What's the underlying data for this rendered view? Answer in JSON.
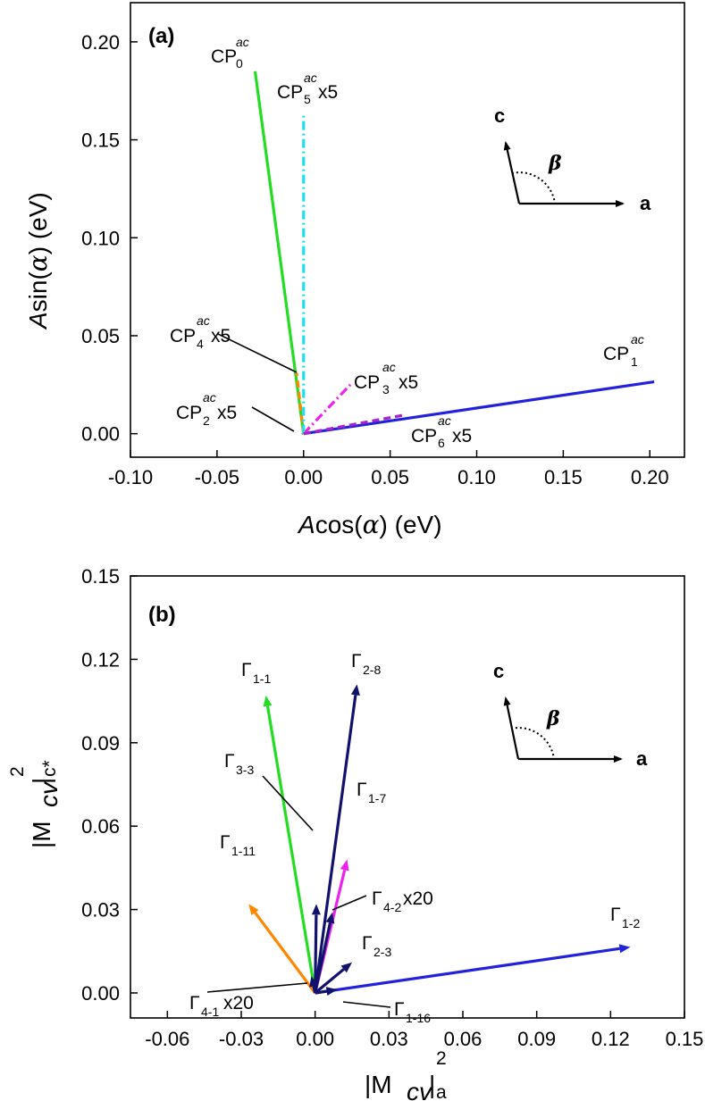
{
  "chart_data": [
    {
      "panel_label": "(a)",
      "type": "scatter",
      "xlabel": "Acos(α)  (eV)",
      "ylabel": "Asin(α) (eV)",
      "xlim": [
        -0.1,
        0.22
      ],
      "ylim": [
        -0.012,
        0.22
      ],
      "x_ticks": [
        -0.1,
        -0.05,
        0.0,
        0.05,
        0.1,
        0.15,
        0.2
      ],
      "x_tick_labels": [
        "-0.10",
        "-0.05",
        "0.00",
        "0.05",
        "0.10",
        "0.15",
        "0.20"
      ],
      "y_ticks": [
        0.0,
        0.05,
        0.1,
        0.15,
        0.2
      ],
      "y_tick_labels": [
        "0.00",
        "0.05",
        "0.10",
        "0.15",
        "0.20"
      ],
      "series": [
        {
          "name": "CP0^ac",
          "color": "#22dd22",
          "dash": "solid",
          "x": [
            0,
            -0.028
          ],
          "y": [
            0,
            0.185
          ]
        },
        {
          "name": "CP1^ac",
          "color": "#2222dd",
          "dash": "solid",
          "x": [
            0,
            0.2025
          ],
          "y": [
            0,
            0.0265
          ]
        },
        {
          "name": "CP2^ac x5",
          "color": "#888800",
          "dash": "dot",
          "x": [
            0,
            -0.0015
          ],
          "y": [
            0,
            0.001
          ]
        },
        {
          "name": "CP3^ac x5",
          "color": "#ee22ee",
          "dash": "dashdot",
          "x": [
            0,
            0.027
          ],
          "y": [
            0,
            0.025
          ]
        },
        {
          "name": "CP4^ac x5",
          "color": "#ff8800",
          "dash": "dash",
          "x": [
            0,
            -0.004
          ],
          "y": [
            0,
            0.031
          ]
        },
        {
          "name": "CP5^ac x5",
          "color": "#22ddee",
          "dash": "dashdot",
          "x": [
            0,
            0.0
          ],
          "y": [
            0,
            0.163
          ]
        },
        {
          "name": "CP6^ac x5",
          "color": "#aa22cc",
          "dash": "dash",
          "x": [
            0,
            0.058
          ],
          "y": [
            0,
            0.0095
          ]
        }
      ],
      "annotations": [
        {
          "base": "CP",
          "sub": "0",
          "sup": "ac",
          "suffix": ""
        },
        {
          "base": "CP",
          "sub": "5",
          "sup": "ac",
          "suffix": " x5"
        },
        {
          "base": "CP",
          "sub": "4",
          "sup": "ac",
          "suffix": " x5"
        },
        {
          "base": "CP",
          "sub": "3",
          "sup": "ac",
          "suffix": " x5"
        },
        {
          "base": "CP",
          "sub": "2",
          "sup": "ac",
          "suffix": " x5"
        },
        {
          "base": "CP",
          "sub": "1",
          "sup": "ac",
          "suffix": ""
        },
        {
          "base": "CP",
          "sub": "6",
          "sup": "ac",
          "suffix": " x5"
        }
      ],
      "inset": {
        "c_label": "c",
        "a_label": "a",
        "angle_label": "β"
      }
    },
    {
      "panel_label": "(b)",
      "type": "scatter",
      "xlabel_base": "|M",
      "xlabel_sub": "cv",
      "xlabel_tail": "|",
      "xlabel_sup": "2",
      "xlabel_post": "a",
      "ylabel_base": "|M",
      "ylabel_sub": "cv",
      "ylabel_tail": "|",
      "ylabel_sup": "2",
      "ylabel_post": "c*",
      "xlim": [
        -0.075,
        0.15
      ],
      "ylim": [
        -0.009,
        0.15
      ],
      "x_ticks": [
        -0.06,
        -0.03,
        0.0,
        0.03,
        0.06,
        0.09,
        0.12,
        0.15
      ],
      "x_tick_labels": [
        "-0.06",
        "-0.03",
        "0.00",
        "0.03",
        "0.06",
        "0.09",
        "0.12",
        "0.15"
      ],
      "y_ticks": [
        0.0,
        0.03,
        0.06,
        0.09,
        0.12,
        0.15
      ],
      "y_tick_labels": [
        "0.00",
        "0.03",
        "0.06",
        "0.09",
        "0.12",
        "0.15"
      ],
      "series": [
        {
          "name": "Γ1-1",
          "color": "#22dd22",
          "x": [
            0,
            -0.02
          ],
          "y": [
            0,
            0.107
          ]
        },
        {
          "name": "Γ2-8",
          "color": "#11116e",
          "x": [
            0,
            0.017
          ],
          "y": [
            0,
            0.111
          ]
        },
        {
          "name": "Γ3-3",
          "color": "#11116e",
          "x": [
            0,
            0.0005
          ],
          "y": [
            0,
            0.032
          ]
        },
        {
          "name": "Γ1-7",
          "color": "#ee22ee",
          "x": [
            0,
            0.013
          ],
          "y": [
            0,
            0.048
          ]
        },
        {
          "name": "Γ1-11",
          "color": "#ff8800",
          "x": [
            0,
            -0.027
          ],
          "y": [
            0,
            0.032
          ]
        },
        {
          "name": "Γ4-2 x20",
          "color": "#11116e",
          "x": [
            0,
            0.007
          ],
          "y": [
            0,
            0.029
          ]
        },
        {
          "name": "Γ2-3",
          "color": "#11116e",
          "x": [
            0,
            0.015
          ],
          "y": [
            0,
            0.011
          ]
        },
        {
          "name": "Γ1-2",
          "color": "#2222dd",
          "x": [
            0,
            0.128
          ],
          "y": [
            0,
            0.0165
          ]
        },
        {
          "name": "Γ4-1 x20",
          "color": "#11116e",
          "x": [
            0,
            -0.0015
          ],
          "y": [
            0,
            0.006
          ]
        },
        {
          "name": "Γ1-16",
          "color": "#11116e",
          "x": [
            0,
            0.009
          ],
          "y": [
            0,
            0.0012
          ]
        }
      ],
      "annotations": [
        {
          "base": "Γ",
          "sub": "1-1",
          "suffix": ""
        },
        {
          "base": "Γ",
          "sub": "2-8",
          "suffix": ""
        },
        {
          "base": "Γ",
          "sub": "3-3",
          "suffix": ""
        },
        {
          "base": "Γ",
          "sub": "1-7",
          "suffix": ""
        },
        {
          "base": "Γ",
          "sub": "1-11",
          "suffix": ""
        },
        {
          "base": "Γ",
          "sub": "4-2",
          "suffix": " x20"
        },
        {
          "base": "Γ",
          "sub": "2-3",
          "suffix": ""
        },
        {
          "base": "Γ",
          "sub": "1-2",
          "suffix": ""
        },
        {
          "base": "Γ",
          "sub": "4-1",
          "suffix": " x20"
        },
        {
          "base": "Γ",
          "sub": "1-16",
          "suffix": ""
        }
      ],
      "inset": {
        "c_label": "c",
        "a_label": "a",
        "angle_label": "β"
      }
    }
  ]
}
